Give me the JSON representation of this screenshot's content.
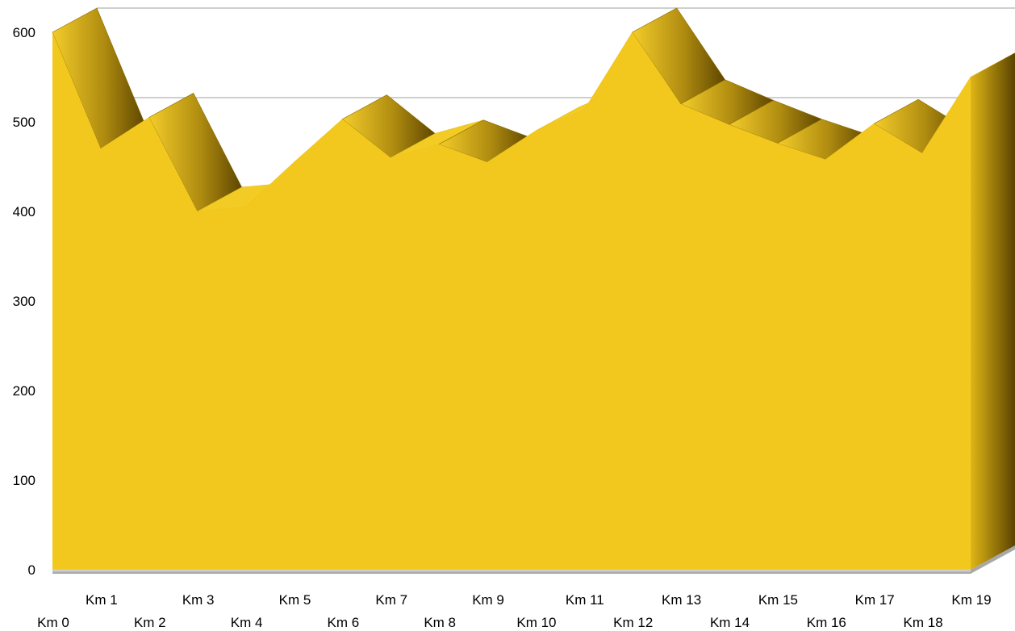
{
  "chart_data": {
    "type": "area",
    "style": "3d",
    "title": "",
    "xlabel": "",
    "ylabel": "",
    "categories": [
      "Km 0",
      "Km 1",
      "Km 2",
      "Km 3",
      "Km 4",
      "Km 5",
      "Km 6",
      "Km 7",
      "Km 8",
      "Km 9",
      "Km 10",
      "Km 11",
      "Km 12",
      "Km 13",
      "Km 14",
      "Km 15",
      "Km 16",
      "Km 17",
      "Km 18",
      "Km 19"
    ],
    "values": [
      600,
      470,
      505,
      400,
      405,
      455,
      503,
      460,
      475,
      455,
      490,
      513,
      600,
      520,
      497,
      476,
      458,
      498,
      465,
      550
    ],
    "ylim": [
      0,
      600
    ],
    "yticks": [
      0,
      100,
      200,
      300,
      400,
      500,
      600
    ],
    "grid": true,
    "legend": "none",
    "colors": {
      "area_fill": "#F2C81E",
      "edge_light": "#F2CB25",
      "edge_dark": "#6B5000",
      "gridline": "#BFBFBF",
      "floor": "#C0C0C0"
    }
  }
}
